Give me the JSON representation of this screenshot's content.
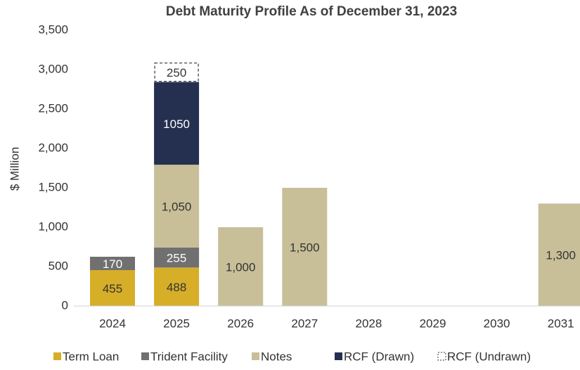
{
  "chart_data": {
    "type": "stacked_bar",
    "title": "Debt Maturity Profile As of December 31, 2023",
    "y_label": "$ Million",
    "categories": [
      "2024",
      "2025",
      "2026",
      "2027",
      "2028",
      "2029",
      "2030",
      "2031"
    ],
    "series": [
      {
        "name": "Term Loan",
        "color": "#d6ae28",
        "values": [
          455,
          488,
          null,
          null,
          null,
          null,
          null,
          null
        ]
      },
      {
        "name": "Trident Facility",
        "color": "#707070",
        "values": [
          170,
          255,
          null,
          null,
          null,
          null,
          null,
          null
        ]
      },
      {
        "name": "Notes",
        "color": "#c8bf99",
        "values": [
          null,
          1050,
          1000,
          1500,
          null,
          null,
          null,
          1300
        ],
        "value_labels": [
          null,
          "1,050",
          "1,000",
          "1,500",
          null,
          null,
          null,
          "1,300"
        ]
      },
      {
        "name": "RCF (Drawn)",
        "color": "#253050",
        "values": [
          null,
          1050,
          null,
          null,
          null,
          null,
          null,
          null
        ]
      },
      {
        "name": "RCF (Undrawn)",
        "color": "#ffffff",
        "dashed": true,
        "values": [
          null,
          250,
          null,
          null,
          null,
          null,
          null,
          null
        ]
      }
    ],
    "ylim": [
      0,
      3500
    ],
    "yticks": [
      0,
      {
        "value": 500,
        "label": "500"
      },
      {
        "value": 1000,
        "label": "1,000"
      },
      {
        "value": 1500,
        "label": "1,500"
      },
      {
        "value": 2000,
        "label": "2,000"
      },
      {
        "value": 2500,
        "label": "2,500"
      },
      {
        "value": 3000,
        "label": "3,000"
      },
      {
        "value": 3500,
        "label": "3,500"
      }
    ],
    "grid": false
  }
}
